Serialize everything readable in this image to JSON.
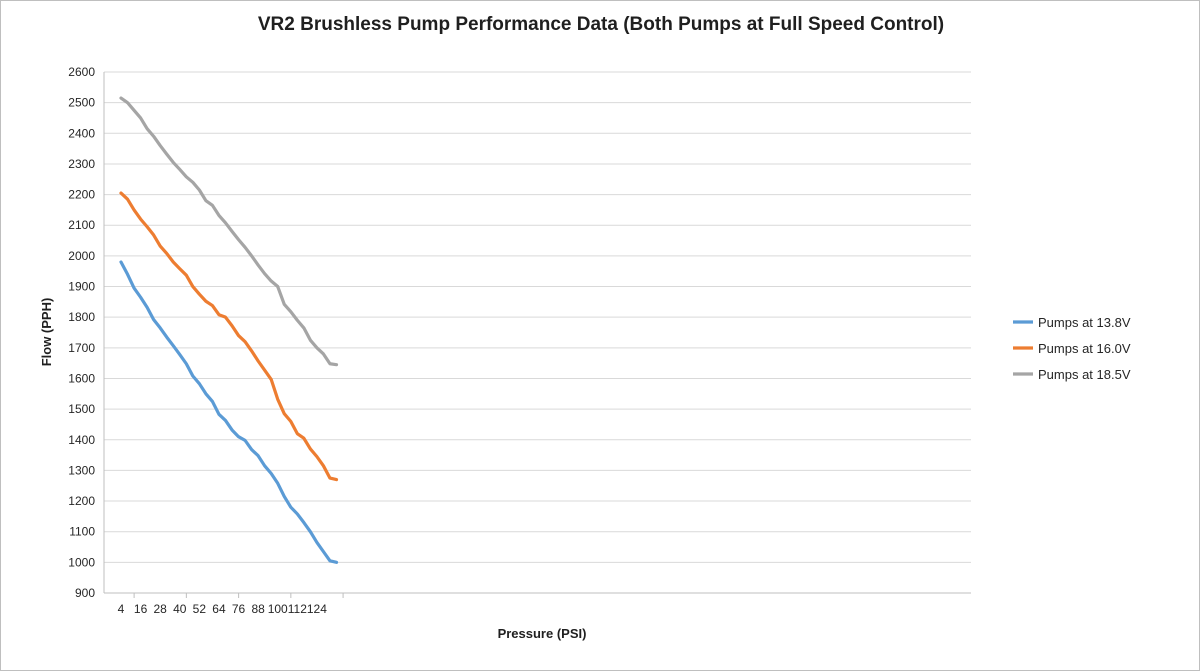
{
  "chart_data": {
    "type": "line",
    "title": "VR2 Brushless Pump Performance Data (Both  Pumps at Full Speed Control)",
    "xlabel": "Pressure (PSI)",
    "ylabel": "Flow (PPH)",
    "xlim": [
      4,
      136
    ],
    "ylim": [
      900,
      2600
    ],
    "y_ticks": [
      900,
      1000,
      1100,
      1200,
      1300,
      1400,
      1500,
      1600,
      1700,
      1800,
      1900,
      2000,
      2100,
      2200,
      2300,
      2400,
      2500,
      2600
    ],
    "x_tick_labels": [
      4,
      16,
      28,
      40,
      52,
      64,
      76,
      88,
      100,
      112,
      124
    ],
    "grid": "horizontal",
    "legend": "right",
    "x": [
      4,
      8,
      12,
      16,
      20,
      24,
      28,
      32,
      36,
      40,
      44,
      48,
      52,
      56,
      60,
      64,
      68,
      72,
      76,
      80,
      84,
      88,
      92,
      96,
      100,
      104,
      108,
      112,
      116,
      120,
      124,
      128,
      132,
      136
    ],
    "series": [
      {
        "name": "Pumps at 13.8V",
        "color": "#5b9bd5",
        "values": [
          1980,
          1940,
          1895,
          1865,
          1832,
          1792,
          1765,
          1735,
          1707,
          1678,
          1648,
          1608,
          1583,
          1550,
          1525,
          1483,
          1463,
          1432,
          1410,
          1398,
          1368,
          1348,
          1315,
          1290,
          1258,
          1215,
          1180,
          1158,
          1130,
          1100,
          1065,
          1035,
          1005,
          1000
        ]
      },
      {
        "name": "Pumps at 16.0V",
        "color": "#ed7d31",
        "values": [
          2205,
          2185,
          2150,
          2120,
          2095,
          2068,
          2032,
          2008,
          1980,
          1958,
          1937,
          1900,
          1875,
          1852,
          1838,
          1808,
          1800,
          1772,
          1740,
          1720,
          1690,
          1657,
          1627,
          1597,
          1532,
          1485,
          1460,
          1420,
          1405,
          1370,
          1345,
          1315,
          1275,
          1270
        ]
      },
      {
        "name": "Pumps at 18.5V",
        "color": "#a5a5a5",
        "values": [
          2515,
          2500,
          2475,
          2450,
          2415,
          2390,
          2360,
          2332,
          2305,
          2282,
          2258,
          2240,
          2215,
          2180,
          2165,
          2132,
          2108,
          2080,
          2053,
          2028,
          2000,
          1970,
          1942,
          1918,
          1900,
          1842,
          1818,
          1790,
          1765,
          1725,
          1700,
          1680,
          1648,
          1645
        ]
      }
    ]
  }
}
